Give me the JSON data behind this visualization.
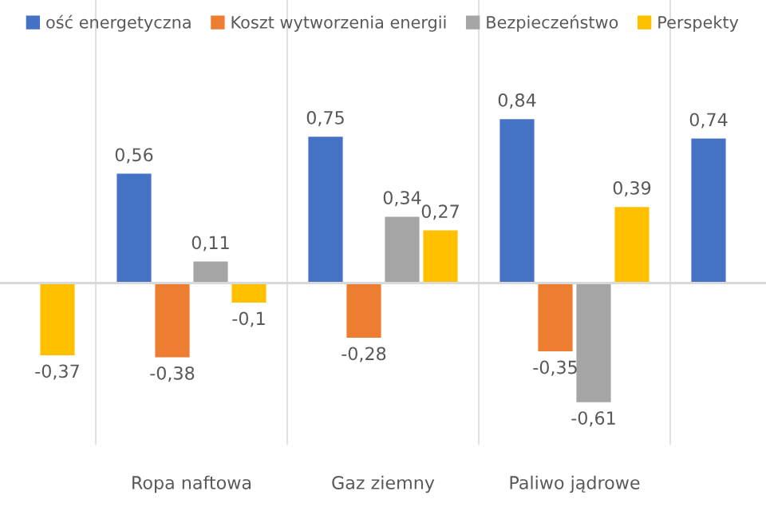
{
  "chart_data": {
    "type": "bar",
    "categories": [
      null,
      "Ropa naftowa",
      "Gaz ziemny",
      "Paliwo jądrowe",
      null
    ],
    "series": [
      {
        "name": "ość energetyczna",
        "color": "#4472c4",
        "values": [
          null,
          0.56,
          0.75,
          0.84,
          0.74
        ],
        "value_labels": [
          null,
          "0,56",
          "0,75",
          "0,84",
          "0,74"
        ]
      },
      {
        "name": "Koszt wytworzenia energii",
        "color": "#ed7d31",
        "values": [
          null,
          -0.38,
          -0.28,
          -0.35,
          null
        ],
        "value_labels": [
          null,
          "-0,38",
          "-0,28",
          "-0,35",
          null
        ]
      },
      {
        "name": "Bezpieczeństwo",
        "color": "#a5a5a5",
        "values": [
          null,
          0.11,
          0.34,
          -0.61,
          null
        ],
        "value_labels": [
          null,
          "0,11",
          "0,34",
          "-0,61",
          null
        ]
      },
      {
        "name": "Perspekty",
        "color": "#ffc000",
        "values": [
          -0.37,
          -0.1,
          0.27,
          0.39,
          null
        ],
        "value_labels": [
          "-0,37",
          "-0,1",
          "0,27",
          "0,39",
          null
        ]
      }
    ],
    "legend": "top",
    "tick_labels": "x",
    "grid": false
  }
}
